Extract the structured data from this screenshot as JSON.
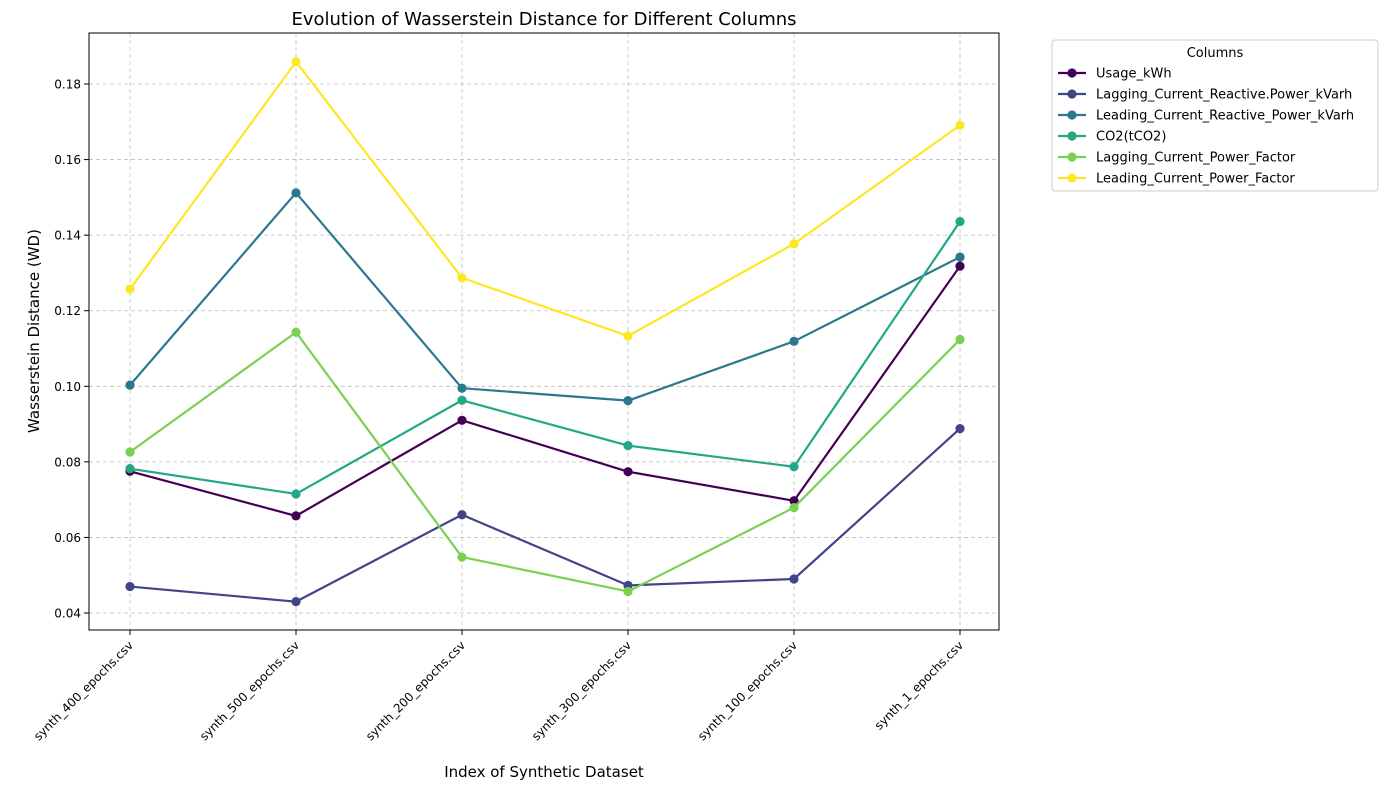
{
  "chart_data": {
    "type": "line",
    "title": "Evolution of Wasserstein Distance for Different Columns",
    "xlabel": "Index of Synthetic Dataset",
    "ylabel": "Wasserstein Distance (WD)",
    "categories": [
      "synth_400_epochs.csv",
      "synth_500_epochs.csv",
      "synth_200_epochs.csv",
      "synth_300_epochs.csv",
      "synth_100_epochs.csv",
      "synth_1_epochs.csv"
    ],
    "ylim": [
      0.0355,
      0.1935
    ],
    "yticks": [
      0.04,
      0.06,
      0.08,
      0.1,
      0.12,
      0.14,
      0.16,
      0.18
    ],
    "ytick_labels": [
      "0.04",
      "0.06",
      "0.08",
      "0.10",
      "0.12",
      "0.14",
      "0.16",
      "0.18"
    ],
    "grid": true,
    "legend": {
      "title": "Columns",
      "placement": "outside-top-right"
    },
    "series": [
      {
        "name": "Usage_kWh",
        "color": "#440154",
        "values": [
          0.0775,
          0.0657,
          0.091,
          0.0774,
          0.0697,
          0.1318
        ]
      },
      {
        "name": "Lagging_Current_Reactive.Power_kVarh",
        "color": "#414487",
        "values": [
          0.047,
          0.043,
          0.066,
          0.0473,
          0.049,
          0.0888
        ]
      },
      {
        "name": "Leading_Current_Reactive_Power_kVarh",
        "color": "#2a788e",
        "values": [
          0.1003,
          0.1512,
          0.0995,
          0.0962,
          0.1119,
          0.1342
        ]
      },
      {
        "name": "CO2(tCO2)",
        "color": "#22a884",
        "values": [
          0.0782,
          0.0715,
          0.0963,
          0.0843,
          0.0787,
          0.1436
        ]
      },
      {
        "name": "Lagging_Current_Power_Factor",
        "color": "#7ad151",
        "values": [
          0.0826,
          0.1143,
          0.0548,
          0.0457,
          0.0679,
          0.1124
        ]
      },
      {
        "name": "Leading_Current_Power_Factor",
        "color": "#fde725",
        "values": [
          0.1257,
          0.1859,
          0.1287,
          0.1133,
          0.1377,
          0.1691
        ]
      }
    ]
  }
}
